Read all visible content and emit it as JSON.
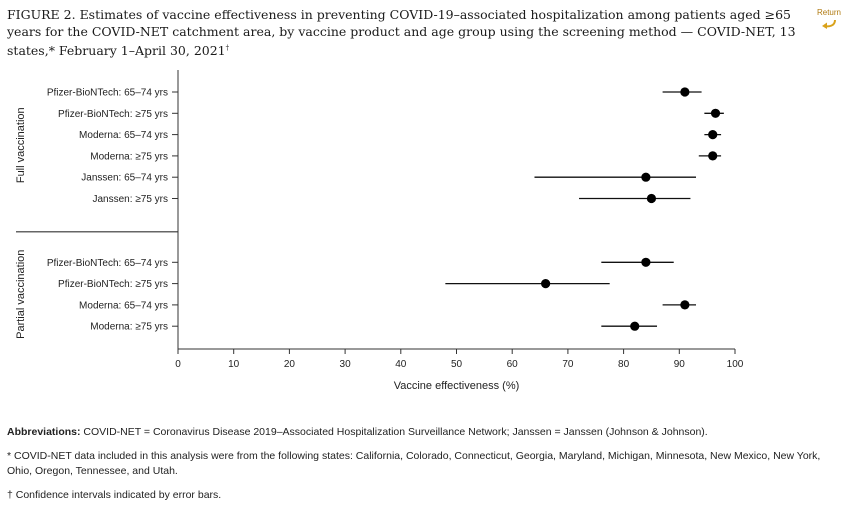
{
  "figure": {
    "title_prefix": "FIGURE 2.",
    "title": "Estimates of vaccine effectiveness in preventing COVID-19–associated hospitalization among patients aged ≥65 years for the COVID-NET catchment area, by vaccine product and age group using the screening method — COVID-NET, 13 states,* February 1–April 30, 2021",
    "title_mark": "†",
    "return_label": "Return"
  },
  "chart_data": {
    "type": "scatter",
    "xlabel": "Vaccine effectiveness (%)",
    "xlim": [
      0,
      100
    ],
    "xticks": [
      0,
      10,
      20,
      30,
      40,
      50,
      60,
      70,
      80,
      90,
      100
    ],
    "groups": [
      {
        "name": "Full vaccination",
        "rows": [
          {
            "label": "Pfizer-BioNTech: 65–74 yrs",
            "ve": 91,
            "lo": 87,
            "hi": 94
          },
          {
            "label": "Pfizer-BioNTech: ≥75 yrs",
            "ve": 96.5,
            "lo": 94.5,
            "hi": 98
          },
          {
            "label": "Moderna: 65–74 yrs",
            "ve": 96,
            "lo": 94.5,
            "hi": 97.5
          },
          {
            "label": "Moderna: ≥75 yrs",
            "ve": 96,
            "lo": 93.5,
            "hi": 97.5
          },
          {
            "label": "Janssen: 65–74 yrs",
            "ve": 84,
            "lo": 64,
            "hi": 93
          },
          {
            "label": "Janssen: ≥75 yrs",
            "ve": 85,
            "lo": 72,
            "hi": 92
          }
        ]
      },
      {
        "name": "Partial vaccination",
        "rows": [
          {
            "label": "Pfizer-BioNTech: 65–74 yrs",
            "ve": 84,
            "lo": 76,
            "hi": 89
          },
          {
            "label": "Pfizer-BioNTech: ≥75 yrs",
            "ve": 66,
            "lo": 48,
            "hi": 77.5
          },
          {
            "label": "Moderna: 65–74 yrs",
            "ve": 91,
            "lo": 87,
            "hi": 93
          },
          {
            "label": "Moderna: ≥75 yrs",
            "ve": 82,
            "lo": 76,
            "hi": 86
          }
        ]
      }
    ]
  },
  "notes": {
    "abbrev_label": "Abbreviations:",
    "abbrev_text": " COVID-NET = Coronavirus Disease 2019–Associated Hospitalization Surveillance Network; Janssen = Janssen (Johnson & Johnson).",
    "states": "* COVID-NET data included in this analysis were from the following states: California, Colorado, Connecticut, Georgia, Maryland, Michigan, Minnesota, New Mexico, New York, Ohio, Oregon, Tennessee, and Utah.",
    "ci": "† Confidence intervals indicated by error bars."
  }
}
